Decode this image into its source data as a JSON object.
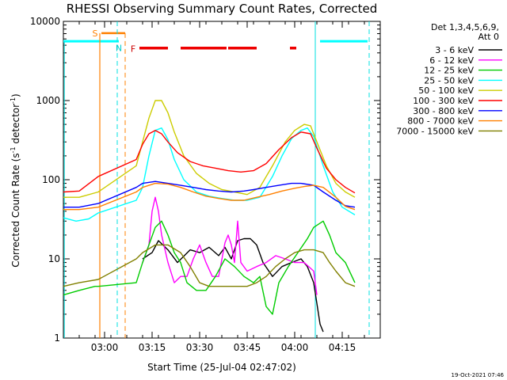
{
  "chart_data": {
    "type": "line",
    "title": "RHESSI Observing Summary Count Rates, Corrected",
    "xlabel": "Start Time (25-Jul-04 02:47:02)",
    "ylabel_main": "Corrected Count Rate (s",
    "ylabel_sup1": "-1",
    "ylabel_mid": " detector",
    "ylabel_sup2": "-1",
    "ylabel_end": ")",
    "x_unit": "minutes after 02:47:02",
    "xlim": [
      0,
      100
    ],
    "ylim": [
      1,
      10000
    ],
    "yscale": "log",
    "x_ticks": [
      {
        "x": 13,
        "label": "03:00"
      },
      {
        "x": 28,
        "label": "03:15"
      },
      {
        "x": 43,
        "label": "03:30"
      },
      {
        "x": 58,
        "label": "03:45"
      },
      {
        "x": 73,
        "label": "04:00"
      },
      {
        "x": 88,
        "label": "04:15"
      }
    ],
    "y_ticks": [
      {
        "y": 1,
        "label": "1"
      },
      {
        "y": 10,
        "label": "10"
      },
      {
        "y": 100,
        "label": "100"
      },
      {
        "y": 1000,
        "label": "1000"
      },
      {
        "y": 10000,
        "label": "10000"
      }
    ],
    "legend": {
      "header1": "Det 1,3,4,5,6,9,",
      "header2": "Att 0",
      "placement": "right"
    },
    "series": [
      {
        "name": "3 - 6 keV",
        "color": "#000000",
        "points": [
          [
            25,
            10
          ],
          [
            28,
            12
          ],
          [
            30,
            17
          ],
          [
            33,
            13
          ],
          [
            36,
            9
          ],
          [
            40,
            13
          ],
          [
            43,
            12
          ],
          [
            46,
            14
          ],
          [
            49,
            11
          ],
          [
            51,
            14
          ],
          [
            53,
            10
          ],
          [
            55,
            17
          ],
          [
            57,
            18
          ],
          [
            59,
            18
          ],
          [
            61,
            15
          ],
          [
            63,
            9
          ],
          [
            66,
            6
          ],
          [
            69,
            8
          ],
          [
            72,
            9
          ],
          [
            75,
            10
          ],
          [
            77,
            8
          ],
          [
            79,
            5
          ],
          [
            81,
            1.5
          ],
          [
            82,
            1.2
          ]
        ]
      },
      {
        "name": "6 - 12 keV",
        "color": "#ff00ff",
        "points": [
          [
            25,
            9
          ],
          [
            27,
            15
          ],
          [
            28,
            40
          ],
          [
            29,
            60
          ],
          [
            30,
            40
          ],
          [
            31,
            20
          ],
          [
            33,
            9
          ],
          [
            35,
            5
          ],
          [
            37,
            6
          ],
          [
            39,
            6
          ],
          [
            41,
            10
          ],
          [
            43,
            15
          ],
          [
            45,
            9
          ],
          [
            47,
            6
          ],
          [
            49,
            6
          ],
          [
            51,
            16
          ],
          [
            52,
            20
          ],
          [
            53,
            15
          ],
          [
            54,
            9
          ],
          [
            55,
            30
          ],
          [
            56,
            9
          ],
          [
            58,
            7
          ],
          [
            61,
            8
          ],
          [
            64,
            9
          ],
          [
            67,
            11
          ],
          [
            70,
            10
          ],
          [
            73,
            9
          ],
          [
            76,
            9
          ],
          [
            79,
            7
          ],
          [
            80,
            3.5
          ]
        ]
      },
      {
        "name": "12 - 25 keV",
        "color": "#00cc00",
        "points": [
          [
            0,
            3.5
          ],
          [
            5,
            4
          ],
          [
            10,
            4.5
          ],
          [
            11,
            4.5
          ],
          [
            23,
            5
          ],
          [
            25,
            9
          ],
          [
            27,
            15
          ],
          [
            29,
            25
          ],
          [
            31,
            30
          ],
          [
            33,
            20
          ],
          [
            35,
            12
          ],
          [
            37,
            9
          ],
          [
            39,
            5
          ],
          [
            42,
            4
          ],
          [
            45,
            4
          ],
          [
            48,
            6
          ],
          [
            51,
            10
          ],
          [
            54,
            8
          ],
          [
            57,
            6
          ],
          [
            60,
            5
          ],
          [
            62,
            6
          ],
          [
            64,
            2.5
          ],
          [
            66,
            2
          ],
          [
            68,
            5
          ],
          [
            71,
            8
          ],
          [
            74,
            12
          ],
          [
            77,
            18
          ],
          [
            79,
            25
          ],
          [
            82,
            30
          ],
          [
            84,
            20
          ],
          [
            86,
            12
          ],
          [
            89,
            9
          ],
          [
            92,
            5
          ]
        ]
      },
      {
        "name": "25 - 50 keV",
        "color": "#00ffff",
        "points": [
          [
            0,
            33
          ],
          [
            4,
            30
          ],
          [
            8,
            32
          ],
          [
            11,
            38
          ],
          [
            23,
            55
          ],
          [
            25,
            80
          ],
          [
            27,
            200
          ],
          [
            29,
            420
          ],
          [
            31,
            450
          ],
          [
            33,
            320
          ],
          [
            35,
            180
          ],
          [
            38,
            100
          ],
          [
            42,
            70
          ],
          [
            46,
            62
          ],
          [
            50,
            58
          ],
          [
            54,
            55
          ],
          [
            58,
            55
          ],
          [
            62,
            60
          ],
          [
            66,
            110
          ],
          [
            69,
            200
          ],
          [
            72,
            330
          ],
          [
            75,
            420
          ],
          [
            77,
            450
          ],
          [
            79,
            350
          ],
          [
            82,
            150
          ],
          [
            85,
            70
          ],
          [
            88,
            45
          ],
          [
            92,
            36
          ]
        ]
      },
      {
        "name": "50 - 100 keV",
        "color": "#cccc00",
        "points": [
          [
            0,
            60
          ],
          [
            5,
            60
          ],
          [
            11,
            70
          ],
          [
            23,
            150
          ],
          [
            25,
            300
          ],
          [
            27,
            600
          ],
          [
            29,
            1000
          ],
          [
            31,
            1000
          ],
          [
            33,
            700
          ],
          [
            35,
            400
          ],
          [
            38,
            200
          ],
          [
            42,
            120
          ],
          [
            46,
            90
          ],
          [
            50,
            75
          ],
          [
            54,
            70
          ],
          [
            58,
            65
          ],
          [
            62,
            80
          ],
          [
            66,
            150
          ],
          [
            70,
            300
          ],
          [
            73,
            420
          ],
          [
            76,
            500
          ],
          [
            78,
            480
          ],
          [
            80,
            300
          ],
          [
            83,
            150
          ],
          [
            86,
            90
          ],
          [
            89,
            70
          ],
          [
            92,
            60
          ]
        ]
      },
      {
        "name": "100 - 300 keV",
        "color": "#ff0000",
        "points": [
          [
            0,
            70
          ],
          [
            5,
            72
          ],
          [
            11,
            110
          ],
          [
            23,
            180
          ],
          [
            25,
            280
          ],
          [
            27,
            380
          ],
          [
            29,
            420
          ],
          [
            31,
            380
          ],
          [
            33,
            300
          ],
          [
            36,
            220
          ],
          [
            40,
            170
          ],
          [
            44,
            150
          ],
          [
            48,
            140
          ],
          [
            52,
            130
          ],
          [
            56,
            125
          ],
          [
            60,
            130
          ],
          [
            64,
            160
          ],
          [
            68,
            240
          ],
          [
            72,
            340
          ],
          [
            75,
            400
          ],
          [
            78,
            380
          ],
          [
            80,
            250
          ],
          [
            83,
            140
          ],
          [
            86,
            100
          ],
          [
            89,
            80
          ],
          [
            92,
            68
          ]
        ]
      },
      {
        "name": "300 - 800 keV",
        "color": "#0000ff",
        "points": [
          [
            0,
            45
          ],
          [
            5,
            45
          ],
          [
            11,
            50
          ],
          [
            23,
            80
          ],
          [
            25,
            90
          ],
          [
            29,
            95
          ],
          [
            33,
            90
          ],
          [
            37,
            85
          ],
          [
            41,
            80
          ],
          [
            45,
            75
          ],
          [
            49,
            72
          ],
          [
            53,
            70
          ],
          [
            57,
            72
          ],
          [
            60,
            75
          ],
          [
            64,
            80
          ],
          [
            68,
            85
          ],
          [
            72,
            90
          ],
          [
            75,
            90
          ],
          [
            79,
            85
          ],
          [
            82,
            70
          ],
          [
            86,
            55
          ],
          [
            89,
            47
          ],
          [
            92,
            45
          ]
        ]
      },
      {
        "name": "800 - 7000 keV",
        "color": "#ff8000",
        "points": [
          [
            0,
            42
          ],
          [
            5,
            42
          ],
          [
            11,
            45
          ],
          [
            23,
            70
          ],
          [
            25,
            80
          ],
          [
            29,
            90
          ],
          [
            33,
            88
          ],
          [
            37,
            80
          ],
          [
            41,
            70
          ],
          [
            45,
            62
          ],
          [
            49,
            58
          ],
          [
            53,
            55
          ],
          [
            57,
            55
          ],
          [
            61,
            60
          ],
          [
            65,
            65
          ],
          [
            69,
            72
          ],
          [
            73,
            78
          ],
          [
            76,
            82
          ],
          [
            79,
            85
          ],
          [
            82,
            80
          ],
          [
            86,
            60
          ],
          [
            89,
            46
          ],
          [
            92,
            42
          ]
        ]
      },
      {
        "name": "7000 - 15000 keV",
        "color": "#808000",
        "points": [
          [
            0,
            4.5
          ],
          [
            5,
            5
          ],
          [
            11,
            5.5
          ],
          [
            23,
            10
          ],
          [
            25,
            12
          ],
          [
            29,
            15
          ],
          [
            33,
            15
          ],
          [
            37,
            12
          ],
          [
            40,
            8
          ],
          [
            43,
            5
          ],
          [
            46,
            4.5
          ],
          [
            50,
            4.5
          ],
          [
            54,
            4.5
          ],
          [
            58,
            4.5
          ],
          [
            61,
            5
          ],
          [
            64,
            6
          ],
          [
            67,
            8
          ],
          [
            70,
            10
          ],
          [
            73,
            12
          ],
          [
            76,
            13
          ],
          [
            79,
            13
          ],
          [
            82,
            12
          ],
          [
            84,
            9
          ],
          [
            86,
            7
          ],
          [
            89,
            5
          ],
          [
            92,
            4.5
          ]
        ]
      }
    ],
    "annotations": [
      {
        "text": "S",
        "color": "#ff8000",
        "x": 10,
        "y": 7100
      },
      {
        "text": "F",
        "color": "#cc0000",
        "x": 22,
        "y": 4500
      },
      {
        "text": "N",
        "color": "#00cccc",
        "x": 17.5,
        "y": 4600
      }
    ],
    "footer": "19-Oct-2021 07:46"
  }
}
